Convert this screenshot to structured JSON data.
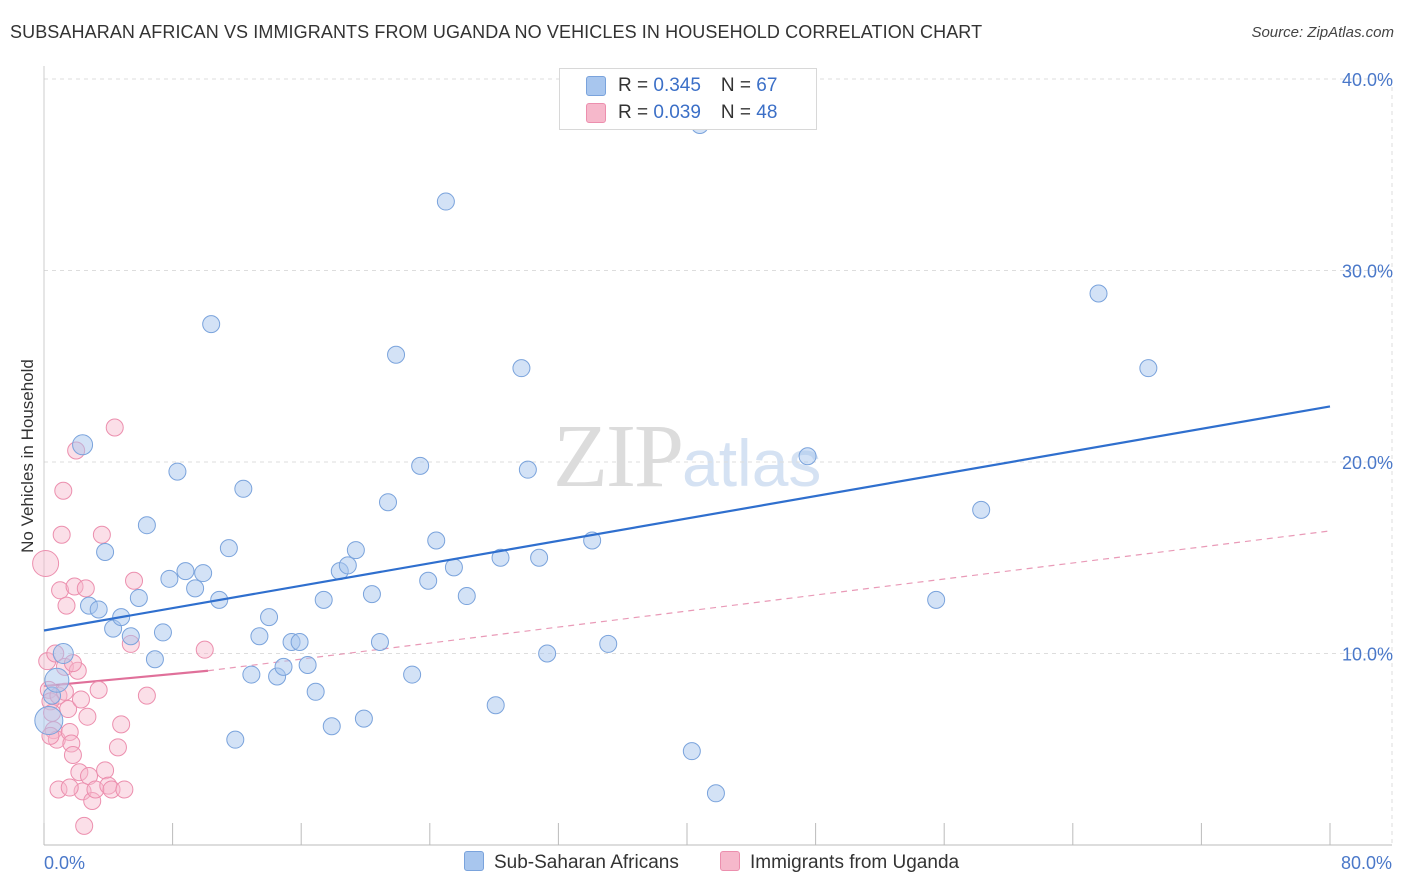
{
  "title": "SUBSAHARAN AFRICAN VS IMMIGRANTS FROM UGANDA NO VEHICLES IN HOUSEHOLD CORRELATION CHART",
  "source": "Source: ZipAtlas.com",
  "watermark": {
    "zip": "ZIP",
    "atlas": "atlas"
  },
  "legend": {
    "rows": [
      {
        "r_label": "R = ",
        "r_value": "0.345",
        "n_label": "N = ",
        "n_value": "67"
      },
      {
        "r_label": "R = ",
        "r_value": "0.039",
        "n_label": "N = ",
        "n_value": "48"
      }
    ]
  },
  "colors": {
    "blue_fill": "#a8c6ee",
    "blue_stroke": "#7aa3dc",
    "blue_line": "#2f6fce",
    "pink_fill": "#f6b8cb",
    "pink_stroke": "#ec8fae",
    "pink_line": "#e0709a",
    "grid": "#dddddd",
    "tick_text": "#4a78c9"
  },
  "chart_data": {
    "type": "scatter",
    "title": "SUBSAHARAN AFRICAN VS IMMIGRANTS FROM UGANDA NO VEHICLES IN HOUSEHOLD CORRELATION CHART",
    "xlabel": "",
    "ylabel": "No Vehicles in Household",
    "xlim": [
      0,
      80
    ],
    "ylim": [
      0,
      40
    ],
    "x_tick_labels": [
      "0.0%",
      "80.0%"
    ],
    "y_ticks": [
      10,
      20,
      30,
      40
    ],
    "y_tick_labels": [
      "10.0%",
      "20.0%",
      "30.0%",
      "40.0%"
    ],
    "grid": true,
    "legend_position": "top-center",
    "series": [
      {
        "name": "Sub-Saharan Africans",
        "R": 0.345,
        "N": 67,
        "trend": {
          "x": [
            0,
            80
          ],
          "y": [
            11.2,
            22.9
          ]
        },
        "points": [
          [
            0.3,
            6.5
          ],
          [
            0.5,
            7.8
          ],
          [
            0.8,
            8.6
          ],
          [
            1.2,
            10.0
          ],
          [
            2.4,
            20.9
          ],
          [
            2.8,
            12.5
          ],
          [
            3.4,
            12.3
          ],
          [
            3.8,
            15.3
          ],
          [
            4.3,
            11.3
          ],
          [
            4.8,
            11.9
          ],
          [
            5.4,
            10.9
          ],
          [
            5.9,
            12.9
          ],
          [
            6.4,
            16.7
          ],
          [
            6.9,
            9.7
          ],
          [
            7.4,
            11.1
          ],
          [
            7.8,
            13.9
          ],
          [
            8.3,
            19.5
          ],
          [
            8.8,
            14.3
          ],
          [
            9.4,
            13.4
          ],
          [
            9.9,
            14.2
          ],
          [
            10.4,
            27.2
          ],
          [
            10.9,
            12.8
          ],
          [
            11.5,
            15.5
          ],
          [
            11.9,
            5.5
          ],
          [
            12.4,
            18.6
          ],
          [
            12.9,
            8.9
          ],
          [
            13.4,
            10.9
          ],
          [
            14.0,
            11.9
          ],
          [
            14.5,
            8.8
          ],
          [
            14.9,
            9.3
          ],
          [
            15.4,
            10.6
          ],
          [
            15.9,
            10.6
          ],
          [
            16.4,
            9.4
          ],
          [
            16.9,
            8.0
          ],
          [
            17.4,
            12.8
          ],
          [
            17.9,
            6.2
          ],
          [
            18.4,
            14.3
          ],
          [
            18.9,
            14.6
          ],
          [
            19.4,
            15.4
          ],
          [
            19.9,
            6.6
          ],
          [
            20.4,
            13.1
          ],
          [
            20.9,
            10.6
          ],
          [
            21.4,
            17.9
          ],
          [
            21.9,
            25.6
          ],
          [
            22.9,
            8.9
          ],
          [
            23.4,
            19.8
          ],
          [
            23.9,
            13.8
          ],
          [
            24.4,
            15.9
          ],
          [
            25.0,
            33.6
          ],
          [
            25.5,
            14.5
          ],
          [
            26.3,
            13.0
          ],
          [
            28.1,
            7.3
          ],
          [
            28.4,
            15.0
          ],
          [
            29.7,
            24.9
          ],
          [
            30.1,
            19.6
          ],
          [
            30.8,
            15.0
          ],
          [
            31.3,
            10.0
          ],
          [
            34.1,
            15.9
          ],
          [
            35.1,
            10.5
          ],
          [
            40.3,
            4.9
          ],
          [
            40.8,
            37.6
          ],
          [
            41.8,
            2.7
          ],
          [
            47.5,
            20.3
          ],
          [
            55.5,
            12.8
          ],
          [
            58.3,
            17.5
          ],
          [
            65.6,
            28.8
          ],
          [
            68.7,
            24.9
          ]
        ]
      },
      {
        "name": "Immigrants from Uganda",
        "R": 0.039,
        "N": 48,
        "trend": {
          "x": [
            0,
            10.2
          ],
          "y": [
            8.3,
            9.1
          ]
        },
        "trend_extended": {
          "x": [
            10.2,
            80
          ],
          "y": [
            9.1,
            16.4
          ]
        },
        "points": [
          [
            0.1,
            14.7
          ],
          [
            0.2,
            9.6
          ],
          [
            0.3,
            8.1
          ],
          [
            0.4,
            7.5
          ],
          [
            0.5,
            6.9
          ],
          [
            0.6,
            6.0
          ],
          [
            0.7,
            10.0
          ],
          [
            0.8,
            5.5
          ],
          [
            0.9,
            7.8
          ],
          [
            1.0,
            13.3
          ],
          [
            1.1,
            16.2
          ],
          [
            1.2,
            18.5
          ],
          [
            1.3,
            9.3
          ],
          [
            1.4,
            12.5
          ],
          [
            1.5,
            7.1
          ],
          [
            1.6,
            5.9
          ],
          [
            1.7,
            5.3
          ],
          [
            1.8,
            4.7
          ],
          [
            1.9,
            13.5
          ],
          [
            2.0,
            20.6
          ],
          [
            2.1,
            9.1
          ],
          [
            2.2,
            3.8
          ],
          [
            2.3,
            7.6
          ],
          [
            2.4,
            2.8
          ],
          [
            2.5,
            1.0
          ],
          [
            2.6,
            13.4
          ],
          [
            2.7,
            6.7
          ],
          [
            2.8,
            3.6
          ],
          [
            3.0,
            2.3
          ],
          [
            3.2,
            2.9
          ],
          [
            3.4,
            8.1
          ],
          [
            3.6,
            16.2
          ],
          [
            3.8,
            3.9
          ],
          [
            4.0,
            3.1
          ],
          [
            4.2,
            2.9
          ],
          [
            4.4,
            21.8
          ],
          [
            4.6,
            5.1
          ],
          [
            4.8,
            6.3
          ],
          [
            5.0,
            2.9
          ],
          [
            5.4,
            10.5
          ],
          [
            5.6,
            13.8
          ],
          [
            6.4,
            7.8
          ],
          [
            10.0,
            10.2
          ],
          [
            0.9,
            2.9
          ],
          [
            1.3,
            8.0
          ],
          [
            1.6,
            3.0
          ],
          [
            0.4,
            5.7
          ],
          [
            1.8,
            9.5
          ]
        ]
      }
    ]
  },
  "bottom_legend": {
    "series1": "Sub-Saharan Africans",
    "series2": "Immigrants from Uganda"
  }
}
